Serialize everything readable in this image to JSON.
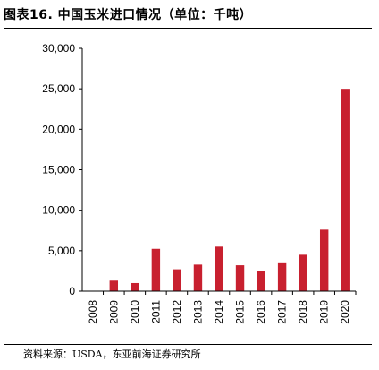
{
  "header": {
    "title": "图表16. 中国玉米进口情况（单位：千吨）"
  },
  "footer": {
    "source": "资料来源：USDA，东亚前海证券研究所"
  },
  "chart_data": {
    "type": "bar",
    "title": "图表16. 中国玉米进口情况（单位：千吨）",
    "xlabel": "",
    "ylabel": "",
    "categories": [
      "2008",
      "2009",
      "2010",
      "2011",
      "2012",
      "2013",
      "2014",
      "2015",
      "2016",
      "2017",
      "2018",
      "2019",
      "2020"
    ],
    "values": [
      50,
      1300,
      1000,
      5230,
      2700,
      3280,
      5500,
      3200,
      2450,
      3450,
      4500,
      7600,
      25000
    ],
    "ylim": [
      0,
      30000
    ],
    "yticks": [
      0,
      5000,
      10000,
      15000,
      20000,
      25000,
      30000
    ],
    "ytick_labels": [
      "0",
      "5,000",
      "10,000",
      "15,000",
      "20,000",
      "25,000",
      "30,000"
    ],
    "bar_color": "#c8202f",
    "grid": false,
    "legend": "none"
  }
}
